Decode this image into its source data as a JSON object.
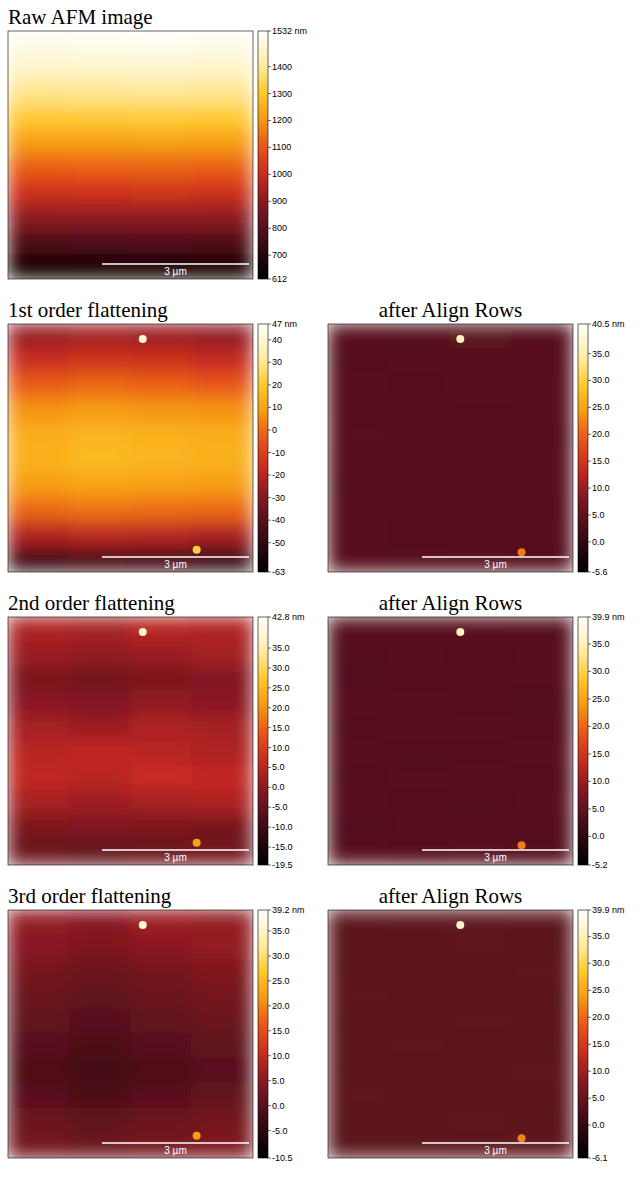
{
  "chart_data": [
    {
      "type": "heatmap",
      "title": "Raw AFM image",
      "xlim": [
        0,
        5
      ],
      "ylim": [
        0,
        5
      ],
      "tick_labels": false,
      "cells": [
        [
          1506,
          1510,
          1513,
          1508
        ],
        [
          1456,
          1460,
          1463,
          1458
        ],
        [
          1386,
          1390,
          1393,
          1388
        ],
        [
          1306,
          1310,
          1313,
          1308
        ],
        [
          1216,
          1220,
          1223,
          1218
        ],
        [
          1116,
          1120,
          1123,
          1118
        ],
        [
          1016,
          1020,
          1023,
          1018
        ],
        [
          906,
          910,
          913,
          908
        ],
        [
          786,
          790,
          793,
          788
        ],
        [
          656,
          660,
          663,
          658
        ]
      ],
      "colorbar": {
        "range": [
          612,
          1532
        ],
        "ticks": [
          {
            "value": 1532,
            "label": "1532 nm"
          },
          1400,
          1300,
          1200,
          1100,
          1000,
          900,
          800,
          700,
          612
        ]
      },
      "scale_bar": {
        "value": 3,
        "label": "3 µm"
      }
    },
    {
      "type": "heatmap",
      "title": "1st order flattening",
      "xlim": [
        0,
        5
      ],
      "ylim": [
        0,
        5
      ],
      "tick_labels": false,
      "cells": [
        [
          -26,
          -24,
          -25,
          -27
        ],
        [
          -16,
          -14,
          -15,
          -17
        ],
        [
          -3,
          -1,
          -2,
          -4
        ],
        [
          7,
          9,
          8,
          7
        ],
        [
          13,
          15,
          14,
          13
        ],
        [
          14,
          16,
          15,
          14
        ],
        [
          9,
          11,
          10,
          9
        ],
        [
          -1,
          1,
          0,
          -1
        ],
        [
          -21,
          -19,
          -20,
          -22
        ],
        [
          -46,
          -44,
          -45,
          -47
        ]
      ],
      "colorbar": {
        "range": [
          -63,
          47
        ],
        "ticks": [
          {
            "value": 47,
            "label": "47 nm"
          },
          40,
          30,
          20,
          10,
          0,
          -10,
          -20,
          -30,
          -40,
          -50,
          -63
        ]
      },
      "scale_bar": {
        "value": 3,
        "label": "3 µm"
      },
      "features": [
        {
          "x": 2.75,
          "y": 0.3,
          "value": 40
        },
        {
          "x": 3.85,
          "y": 4.55,
          "value": 22
        }
      ]
    },
    {
      "type": "heatmap",
      "title": "after Align Rows",
      "xlim": [
        0,
        5
      ],
      "ylim": [
        0,
        5
      ],
      "tick_labels": false,
      "cells": [
        [
          4.2,
          4.0,
          4.4,
          4.1
        ],
        [
          3.9,
          4.1,
          4.0,
          4.2
        ],
        [
          4.1,
          3.8,
          4.2,
          4.0
        ],
        [
          4.0,
          4.2,
          3.9,
          4.1
        ],
        [
          4.3,
          4.0,
          4.1,
          3.9
        ],
        [
          4.0,
          4.1,
          4.2,
          4.0
        ],
        [
          3.9,
          4.2,
          4.0,
          4.1
        ],
        [
          4.1,
          4.0,
          3.8,
          4.2
        ],
        [
          4.0,
          3.9,
          4.1,
          4.0
        ],
        [
          4.2,
          4.1,
          4.0,
          3.9
        ]
      ],
      "colorbar": {
        "range": [
          -5.6,
          40.5
        ],
        "ticks": [
          {
            "value": 40.5,
            "label": "40.5 nm"
          },
          {
            "value": 35,
            "label": "35.0"
          },
          {
            "value": 30,
            "label": "30.0"
          },
          {
            "value": 25,
            "label": "25.0"
          },
          {
            "value": 20,
            "label": "20.0"
          },
          {
            "value": 15,
            "label": "15.0"
          },
          {
            "value": 10,
            "label": "10.0"
          },
          {
            "value": 5,
            "label": "5.0"
          },
          {
            "value": 0,
            "label": "0.0"
          },
          -5.6
        ]
      },
      "scale_bar": {
        "value": 3,
        "label": "3 µm"
      },
      "features": [
        {
          "x": 2.7,
          "y": 0.3,
          "value": 36
        },
        {
          "x": 3.95,
          "y": 4.6,
          "value": 22
        }
      ]
    },
    {
      "type": "heatmap",
      "title": "2nd order flattening",
      "xlim": [
        0,
        5
      ],
      "ylim": [
        0,
        5
      ],
      "tick_labels": false,
      "cells": [
        [
          4,
          3,
          5,
          4
        ],
        [
          2,
          1,
          2,
          3
        ],
        [
          -2,
          -3,
          -2,
          -1
        ],
        [
          0,
          -1,
          1,
          0
        ],
        [
          3,
          2,
          4,
          3
        ],
        [
          5,
          6,
          5,
          4
        ],
        [
          6,
          5,
          7,
          6
        ],
        [
          3,
          2,
          3,
          4
        ],
        [
          -2,
          -1,
          -2,
          -3
        ],
        [
          -4,
          -5,
          -4,
          -3
        ]
      ],
      "colorbar": {
        "range": [
          -19.5,
          42.8
        ],
        "ticks": [
          {
            "value": 42.8,
            "label": "42.8 nm"
          },
          {
            "value": 35,
            "label": "35.0"
          },
          {
            "value": 30,
            "label": "30.0"
          },
          {
            "value": 25,
            "label": "25.0"
          },
          {
            "value": 20,
            "label": "20.0"
          },
          {
            "value": 15,
            "label": "15.0"
          },
          {
            "value": 10,
            "label": "10.0"
          },
          {
            "value": 5,
            "label": "5.0"
          },
          {
            "value": 0,
            "label": "0.0"
          },
          {
            "value": -5,
            "label": "-5.0"
          },
          {
            "value": -10,
            "label": "-10.0"
          },
          {
            "value": -15,
            "label": "-15.0"
          },
          -19.5
        ]
      },
      "scale_bar": {
        "value": 3,
        "label": "3 µm"
      },
      "features": [
        {
          "x": 2.75,
          "y": 0.3,
          "value": 38
        },
        {
          "x": 3.85,
          "y": 4.55,
          "value": 22
        }
      ]
    },
    {
      "type": "heatmap",
      "title": "after Align Rows",
      "xlim": [
        0,
        5
      ],
      "ylim": [
        0,
        5
      ],
      "tick_labels": false,
      "cells": [
        [
          4.1,
          4.0,
          4.3,
          4.0
        ],
        [
          4.0,
          4.2,
          3.9,
          4.1
        ],
        [
          3.9,
          4.0,
          4.1,
          4.2
        ],
        [
          4.2,
          4.1,
          4.0,
          3.9
        ],
        [
          4.0,
          4.3,
          4.1,
          4.0
        ],
        [
          4.1,
          3.9,
          4.0,
          4.2
        ],
        [
          4.0,
          4.1,
          4.2,
          4.0
        ],
        [
          4.2,
          4.0,
          3.9,
          4.1
        ],
        [
          3.9,
          4.1,
          4.0,
          4.0
        ],
        [
          4.1,
          4.0,
          4.2,
          3.9
        ]
      ],
      "colorbar": {
        "range": [
          -5.2,
          39.9
        ],
        "ticks": [
          {
            "value": 39.9,
            "label": "39.9 nm"
          },
          {
            "value": 35,
            "label": "35.0"
          },
          {
            "value": 30,
            "label": "30.0"
          },
          {
            "value": 25,
            "label": "25.0"
          },
          {
            "value": 20,
            "label": "20.0"
          },
          {
            "value": 15,
            "label": "15.0"
          },
          {
            "value": 10,
            "label": "10.0"
          },
          {
            "value": 5,
            "label": "5.0"
          },
          {
            "value": 0,
            "label": "0.0"
          },
          -5.2
        ]
      },
      "scale_bar": {
        "value": 3,
        "label": "3 µm"
      },
      "features": [
        {
          "x": 2.7,
          "y": 0.3,
          "value": 36
        },
        {
          "x": 3.95,
          "y": 4.6,
          "value": 22
        }
      ]
    },
    {
      "type": "heatmap",
      "title": "3rd order flattening",
      "xlim": [
        0,
        5
      ],
      "ylim": [
        0,
        5
      ],
      "tick_labels": false,
      "cells": [
        [
          6,
          5,
          7,
          6
        ],
        [
          5,
          4,
          5,
          6
        ],
        [
          3,
          2,
          3,
          4
        ],
        [
          2,
          1,
          2,
          3
        ],
        [
          1,
          0,
          1,
          2
        ],
        [
          0,
          -1,
          0,
          1
        ],
        [
          -1,
          -2,
          -1,
          0
        ],
        [
          0,
          -1,
          0,
          1
        ],
        [
          2,
          1,
          2,
          3
        ],
        [
          3,
          2,
          3,
          4
        ]
      ],
      "colorbar": {
        "range": [
          -10.5,
          39.2
        ],
        "ticks": [
          {
            "value": 39.2,
            "label": "39.2 nm"
          },
          {
            "value": 35,
            "label": "35.0"
          },
          {
            "value": 30,
            "label": "30.0"
          },
          {
            "value": 25,
            "label": "25.0"
          },
          {
            "value": 20,
            "label": "20.0"
          },
          {
            "value": 15,
            "label": "15.0"
          },
          {
            "value": 10,
            "label": "10.0"
          },
          {
            "value": 5,
            "label": "5.0"
          },
          {
            "value": 0,
            "label": "0.0"
          },
          {
            "value": -5,
            "label": "-5.0"
          },
          -10.5
        ]
      },
      "scale_bar": {
        "value": 3,
        "label": "3 µm"
      },
      "features": [
        {
          "x": 2.75,
          "y": 0.3,
          "value": 36
        },
        {
          "x": 3.85,
          "y": 4.55,
          "value": 22
        }
      ]
    },
    {
      "type": "heatmap",
      "title": "after Align Rows",
      "xlim": [
        0,
        5
      ],
      "ylim": [
        0,
        5
      ],
      "tick_labels": false,
      "cells": [
        [
          4.0,
          4.2,
          4.1,
          3.9
        ],
        [
          4.1,
          4.0,
          4.3,
          4.0
        ],
        [
          4.0,
          3.9,
          4.0,
          4.2
        ],
        [
          4.2,
          4.1,
          3.9,
          4.0
        ],
        [
          3.9,
          4.0,
          4.2,
          4.1
        ],
        [
          4.1,
          4.2,
          4.0,
          3.9
        ],
        [
          4.0,
          4.0,
          4.1,
          4.2
        ],
        [
          4.2,
          3.9,
          4.0,
          4.1
        ],
        [
          4.0,
          4.1,
          4.2,
          4.0
        ],
        [
          3.9,
          4.0,
          4.1,
          4.2
        ]
      ],
      "colorbar": {
        "range": [
          -6.1,
          39.9
        ],
        "ticks": [
          {
            "value": 39.9,
            "label": "39.9 nm"
          },
          {
            "value": 35,
            "label": "35.0"
          },
          {
            "value": 30,
            "label": "30.0"
          },
          {
            "value": 25,
            "label": "25.0"
          },
          {
            "value": 20,
            "label": "20.0"
          },
          {
            "value": 15,
            "label": "15.0"
          },
          {
            "value": 10,
            "label": "10.0"
          },
          {
            "value": 5,
            "label": "5.0"
          },
          {
            "value": 0,
            "label": "0.0"
          },
          -6.1
        ]
      },
      "scale_bar": {
        "value": 3,
        "label": "3 µm"
      },
      "features": [
        {
          "x": 2.7,
          "y": 0.3,
          "value": 36
        },
        {
          "x": 3.95,
          "y": 4.6,
          "value": 22
        }
      ]
    }
  ]
}
